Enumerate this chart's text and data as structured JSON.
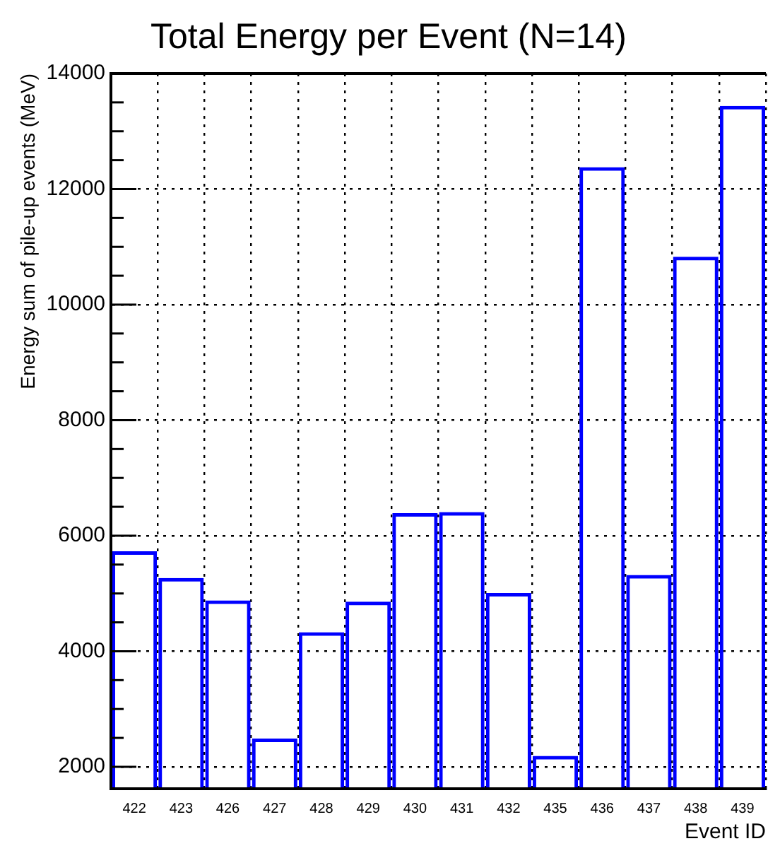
{
  "chart_data": {
    "type": "bar",
    "title": "Total Energy per Event (N=14)",
    "xlabel": "Event ID",
    "ylabel": "Energy sum of pile-up events (MeV)",
    "categories": [
      "422",
      "423",
      "426",
      "427",
      "428",
      "429",
      "430",
      "431",
      "432",
      "435",
      "436",
      "437",
      "438",
      "439"
    ],
    "series": [
      {
        "color": "#0000ff",
        "values": [
          5730,
          5270,
          4880,
          2490,
          4330,
          4860,
          6390,
          6410,
          5010,
          2190,
          12380,
          5320,
          10830,
          13440
        ]
      }
    ],
    "ylim": [
      1620,
      14000
    ],
    "yticks": [
      {
        "value": 2000,
        "label": "2000"
      },
      {
        "value": 2500,
        "label": null
      },
      {
        "value": 3000,
        "label": null
      },
      {
        "value": 3500,
        "label": null
      },
      {
        "value": 4000,
        "label": "4000"
      },
      {
        "value": 4500,
        "label": null
      },
      {
        "value": 5000,
        "label": null
      },
      {
        "value": 5500,
        "label": null
      },
      {
        "value": 6000,
        "label": "6000"
      },
      {
        "value": 6500,
        "label": null
      },
      {
        "value": 7000,
        "label": null
      },
      {
        "value": 7500,
        "label": null
      },
      {
        "value": 8000,
        "label": "8000"
      },
      {
        "value": 8500,
        "label": null
      },
      {
        "value": 9000,
        "label": null
      },
      {
        "value": 9500,
        "label": null
      },
      {
        "value": 10000,
        "label": "10000"
      },
      {
        "value": 10500,
        "label": null
      },
      {
        "value": 11000,
        "label": null
      },
      {
        "value": 11500,
        "label": null
      },
      {
        "value": 12000,
        "label": "12000"
      },
      {
        "value": 12500,
        "label": null
      },
      {
        "value": 13000,
        "label": null
      },
      {
        "value": 13500,
        "label": null
      },
      {
        "value": 14000,
        "label": "14000"
      }
    ],
    "grid": true,
    "legend": false
  }
}
